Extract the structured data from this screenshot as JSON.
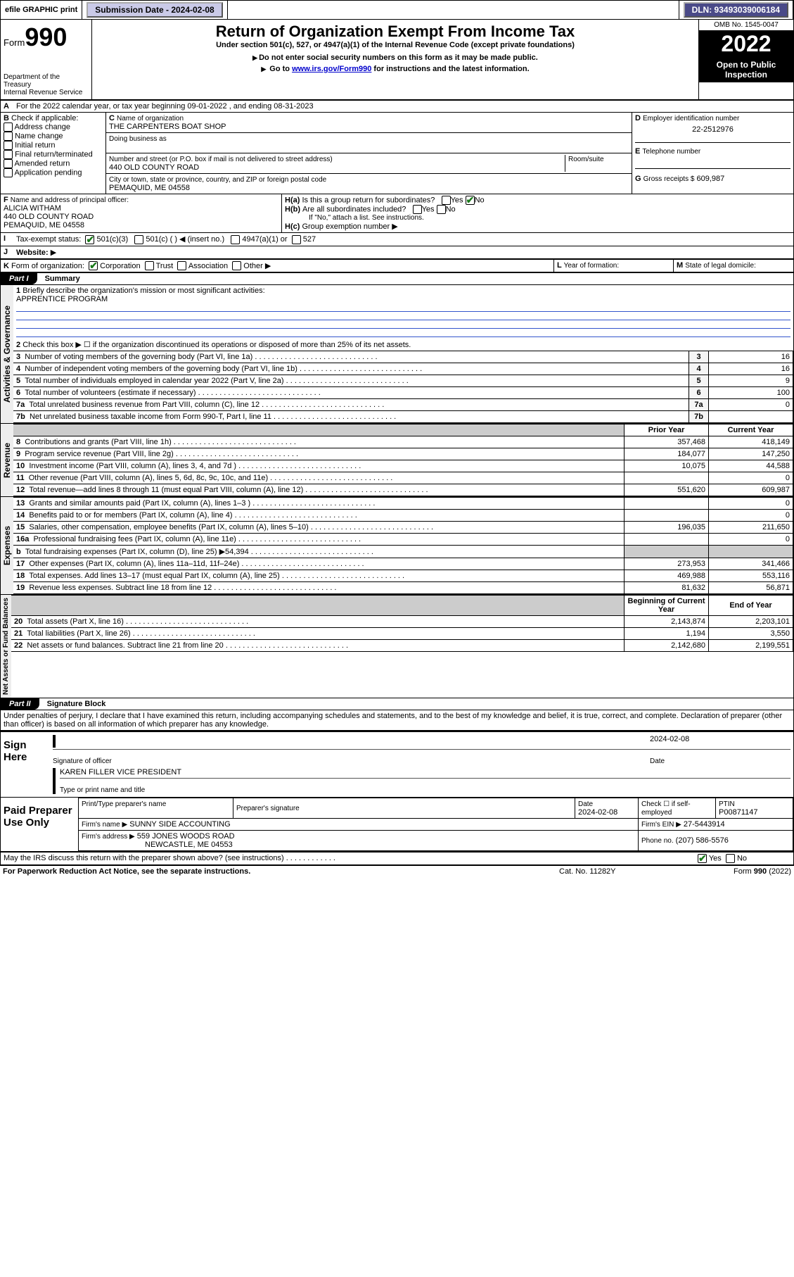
{
  "topbar": {
    "efile": "efile GRAPHIC print",
    "submission": "Submission Date - 2024-02-08",
    "dln": "DLN: 93493039006184"
  },
  "header": {
    "form_word": "Form",
    "form_num": "990",
    "dept1": "Department of the Treasury",
    "dept2": "Internal Revenue Service",
    "title": "Return of Organization Exempt From Income Tax",
    "sub1": "Under section 501(c), 527, or 4947(a)(1) of the Internal Revenue Code (except private foundations)",
    "sub2": "Do not enter social security numbers on this form as it may be made public.",
    "sub3a": "Go to ",
    "sub3_link": "www.irs.gov/Form990",
    "sub3b": " for instructions and the latest information.",
    "omb": "OMB No. 1545-0047",
    "year": "2022",
    "open1": "Open to Public",
    "open2": "Inspection"
  },
  "A": {
    "text": "For the 2022 calendar year, or tax year beginning 09-01-2022    , and ending 08-31-2023"
  },
  "B": {
    "label": "Check if applicable:",
    "opts": [
      "Address change",
      "Name change",
      "Initial return",
      "Final return/terminated",
      "Amended return",
      "Application pending"
    ]
  },
  "C": {
    "label": "Name of organization",
    "val": "THE CARPENTERS BOAT SHOP",
    "dba": "Doing business as",
    "addr_label": "Number and street (or P.O. box if mail is not delivered to street address)",
    "room": "Room/suite",
    "addr": "440 OLD COUNTY ROAD",
    "city_label": "City or town, state or province, country, and ZIP or foreign postal code",
    "city": "PEMAQUID, ME  04558"
  },
  "D": {
    "label": "Employer identification number",
    "val": "22-2512976"
  },
  "E": {
    "label": "Telephone number",
    "val": ""
  },
  "F": {
    "label": "Name and address of principal officer:",
    "name": "ALICIA WITHAM",
    "addr": "440 OLD COUNTY ROAD",
    "city": "PEMAQUID, ME  04558"
  },
  "G": {
    "label": "Gross receipts $",
    "val": "609,987"
  },
  "H": {
    "a": "Is this a group return for subordinates?",
    "b": "Are all subordinates included?",
    "note": "If \"No,\" attach a list. See instructions.",
    "c": "Group exemption number"
  },
  "I": {
    "label": "Tax-exempt status:",
    "opts": [
      "501(c)(3)",
      "501(c) (  ) ◀ (insert no.)",
      "4947(a)(1) or",
      "527"
    ]
  },
  "J": {
    "label": "Website:"
  },
  "K": {
    "label": "Form of organization:",
    "opts": [
      "Corporation",
      "Trust",
      "Association",
      "Other"
    ]
  },
  "L": {
    "label": "Year of formation:"
  },
  "M": {
    "label": "State of legal domicile:"
  },
  "part1": {
    "tab": "Part I",
    "title": "Summary",
    "q1": "Briefly describe the organization's mission or most significant activities:",
    "mission": "APPRENTICE PROGRAM",
    "q2": "Check this box ▶ ☐  if the organization discontinued its operations or disposed of more than 25% of its net assets.",
    "gov_label": "Activities & Governance",
    "rev_label": "Revenue",
    "exp_label": "Expenses",
    "net_label": "Net Assets or Fund Balances",
    "prior": "Prior Year",
    "current": "Current Year",
    "begin": "Beginning of Current Year",
    "end": "End of Year",
    "lines_gov": [
      {
        "n": "3",
        "t": "Number of voting members of the governing body (Part VI, line 1a)",
        "v": "16"
      },
      {
        "n": "4",
        "t": "Number of independent voting members of the governing body (Part VI, line 1b)",
        "v": "16"
      },
      {
        "n": "5",
        "t": "Total number of individuals employed in calendar year 2022 (Part V, line 2a)",
        "v": "9"
      },
      {
        "n": "6",
        "t": "Total number of volunteers (estimate if necessary)",
        "v": "100"
      },
      {
        "n": "7a",
        "t": "Total unrelated business revenue from Part VIII, column (C), line 12",
        "v": "0"
      },
      {
        "n": "7b",
        "t": "Net unrelated business taxable income from Form 990-T, Part I, line 11",
        "v": ""
      }
    ],
    "lines_rev": [
      {
        "n": "8",
        "t": "Contributions and grants (Part VIII, line 1h)",
        "p": "357,468",
        "c": "418,149"
      },
      {
        "n": "9",
        "t": "Program service revenue (Part VIII, line 2g)",
        "p": "184,077",
        "c": "147,250"
      },
      {
        "n": "10",
        "t": "Investment income (Part VIII, column (A), lines 3, 4, and 7d )",
        "p": "10,075",
        "c": "44,588"
      },
      {
        "n": "11",
        "t": "Other revenue (Part VIII, column (A), lines 5, 6d, 8c, 9c, 10c, and 11e)",
        "p": "",
        "c": "0"
      },
      {
        "n": "12",
        "t": "Total revenue—add lines 8 through 11 (must equal Part VIII, column (A), line 12)",
        "p": "551,620",
        "c": "609,987"
      }
    ],
    "lines_exp": [
      {
        "n": "13",
        "t": "Grants and similar amounts paid (Part IX, column (A), lines 1–3 )",
        "p": "",
        "c": "0"
      },
      {
        "n": "14",
        "t": "Benefits paid to or for members (Part IX, column (A), line 4)",
        "p": "",
        "c": "0"
      },
      {
        "n": "15",
        "t": "Salaries, other compensation, employee benefits (Part IX, column (A), lines 5–10)",
        "p": "196,035",
        "c": "211,650"
      },
      {
        "n": "16a",
        "t": "Professional fundraising fees (Part IX, column (A), line 11e)",
        "p": "",
        "c": "0"
      },
      {
        "n": "b",
        "t": "Total fundraising expenses (Part IX, column (D), line 25) ▶54,394",
        "p": "GRAY",
        "c": "GRAY"
      },
      {
        "n": "17",
        "t": "Other expenses (Part IX, column (A), lines 11a–11d, 11f–24e)",
        "p": "273,953",
        "c": "341,466"
      },
      {
        "n": "18",
        "t": "Total expenses. Add lines 13–17 (must equal Part IX, column (A), line 25)",
        "p": "469,988",
        "c": "553,116"
      },
      {
        "n": "19",
        "t": "Revenue less expenses. Subtract line 18 from line 12",
        "p": "81,632",
        "c": "56,871"
      }
    ],
    "lines_net": [
      {
        "n": "20",
        "t": "Total assets (Part X, line 16)",
        "p": "2,143,874",
        "c": "2,203,101"
      },
      {
        "n": "21",
        "t": "Total liabilities (Part X, line 26)",
        "p": "1,194",
        "c": "3,550"
      },
      {
        "n": "22",
        "t": "Net assets or fund balances. Subtract line 21 from line 20",
        "p": "2,142,680",
        "c": "2,199,551"
      }
    ]
  },
  "part2": {
    "tab": "Part II",
    "title": "Signature Block",
    "decl": "Under penalties of perjury, I declare that I have examined this return, including accompanying schedules and statements, and to the best of my knowledge and belief, it is true, correct, and complete. Declaration of preparer (other than officer) is based on all information of which preparer has any knowledge.",
    "sign_here": "Sign Here",
    "sig_officer": "Signature of officer",
    "date_label": "Date",
    "date": "2024-02-08",
    "officer_name": "KAREN FILLER  VICE PRESIDENT",
    "type_name": "Type or print name and title",
    "paid": "Paid Preparer Use Only",
    "prep_name_label": "Print/Type preparer's name",
    "prep_sig_label": "Preparer's signature",
    "prep_date": "2024-02-08",
    "check_self": "Check ☐ if self-employed",
    "ptin_label": "PTIN",
    "ptin": "P00871147",
    "firm_name_label": "Firm's name   ▶",
    "firm_name": "SUNNY SIDE ACCOUNTING",
    "firm_ein_label": "Firm's EIN ▶",
    "firm_ein": "27-5443914",
    "firm_addr_label": "Firm's address ▶",
    "firm_addr": "559 JONES WOODS ROAD",
    "firm_city": "NEWCASTLE, ME  04553",
    "phone_label": "Phone no.",
    "phone": "(207) 586-5576",
    "may_irs": "May the IRS discuss this return with the preparer shown above? (see instructions)",
    "paperwork": "For Paperwork Reduction Act Notice, see the separate instructions.",
    "catno": "Cat. No. 11282Y",
    "formno": "Form 990 (2022)"
  },
  "colors": {
    "link": "#0000cc",
    "check_green": "#1a7a1a",
    "mission_line": "#3355cc"
  }
}
